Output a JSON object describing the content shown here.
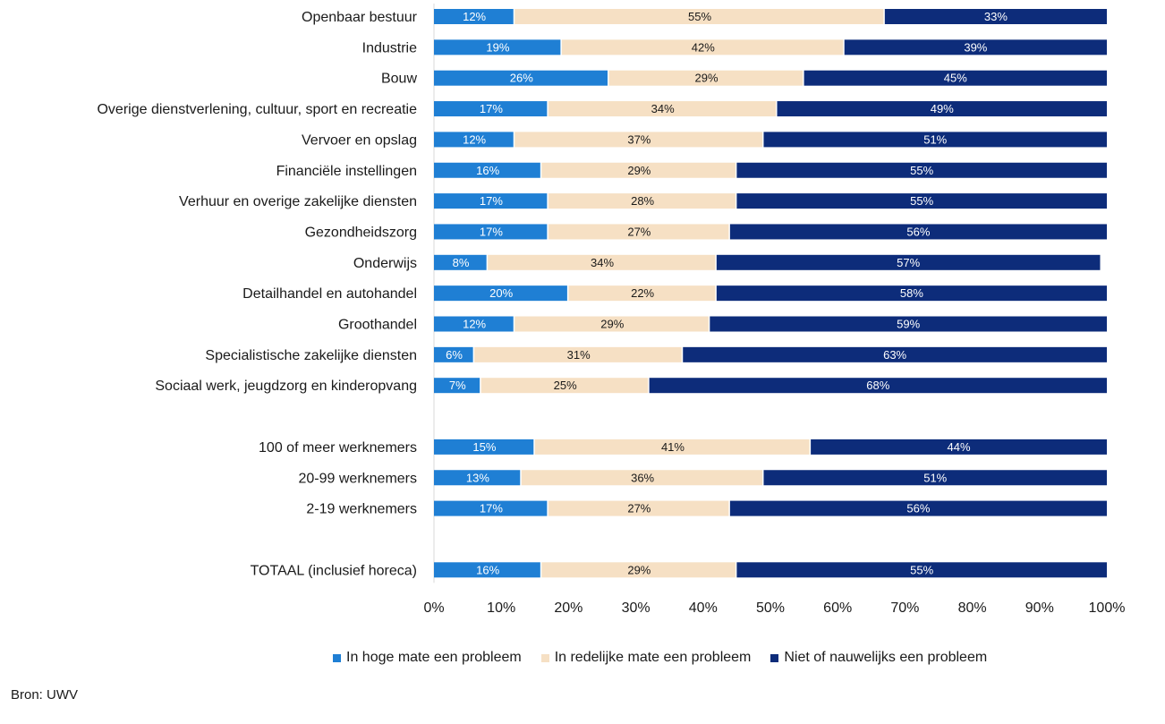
{
  "chart_data": {
    "type": "bar",
    "orientation": "horizontal",
    "stacked": true,
    "categories": [
      "Openbaar bestuur",
      "Industrie",
      "Bouw",
      "Overige dienstverlening, cultuur, sport en recreatie",
      "Vervoer en opslag",
      "Financiële instellingen",
      "Verhuur en overige zakelijke diensten",
      "Gezondheidszorg",
      "Onderwijs",
      "Detailhandel en autohandel",
      "Groothandel",
      "Specialistische zakelijke diensten",
      "Sociaal werk, jeugdzorg en kinderopvang",
      "",
      "100 of meer werknemers",
      "20-99 werknemers",
      "2-19 werknemers",
      "",
      "TOTAAL (inclusief horeca)"
    ],
    "series": [
      {
        "name": "In hoge mate een probleem",
        "color": "#1f7fd4",
        "label_color": "#ffffff",
        "values": [
          12,
          19,
          26,
          17,
          12,
          16,
          17,
          17,
          8,
          20,
          12,
          6,
          7,
          null,
          15,
          13,
          17,
          null,
          16
        ]
      },
      {
        "name": "In redelijke mate een probleem",
        "color": "#f6e0c4",
        "label_color": "#1a1a1a",
        "values": [
          55,
          42,
          29,
          34,
          37,
          29,
          28,
          27,
          34,
          22,
          29,
          31,
          25,
          null,
          41,
          36,
          27,
          null,
          29
        ]
      },
      {
        "name": "Niet of nauwelijks een probleem",
        "color": "#0d2c7a",
        "label_color": "#ffffff",
        "values": [
          33,
          39,
          45,
          49,
          51,
          55,
          55,
          56,
          57,
          58,
          59,
          63,
          68,
          null,
          44,
          51,
          56,
          null,
          55
        ]
      }
    ],
    "value_suffix": "%",
    "xlim": [
      0,
      100
    ],
    "xticks": [
      "0%",
      "10%",
      "20%",
      "30%",
      "40%",
      "50%",
      "60%",
      "70%",
      "80%",
      "90%",
      "100%"
    ],
    "title": "",
    "xlabel": "",
    "ylabel": "",
    "legend_position": "bottom"
  },
  "source": "Bron: UWV"
}
